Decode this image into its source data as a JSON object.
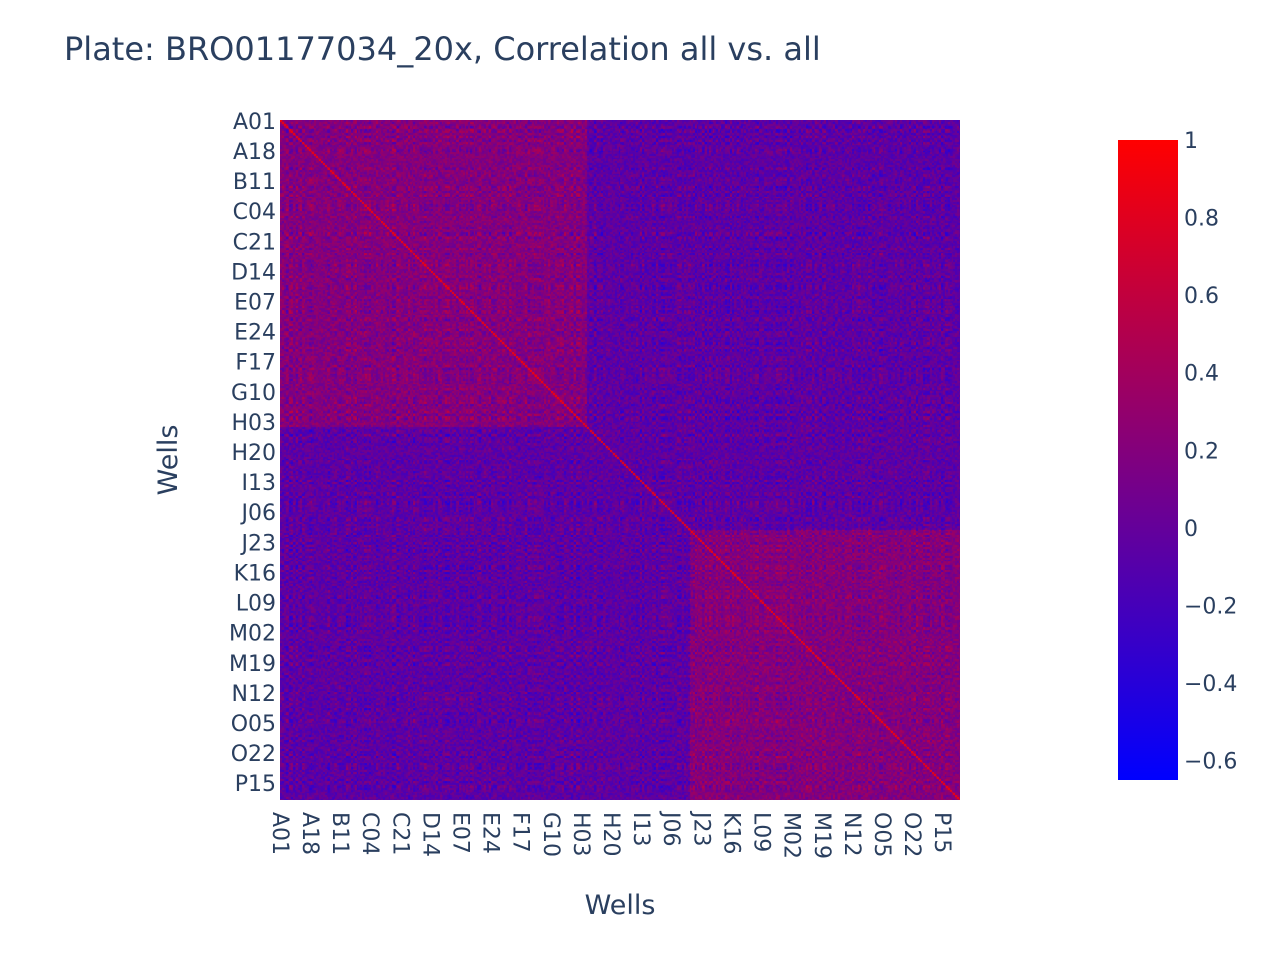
{
  "chart_data": {
    "type": "heatmap",
    "title": "Plate: BRO01177034_20x, Correlation all vs. all",
    "xlabel": "Wells",
    "ylabel": "Wells",
    "x_tick_labels": [
      "A01",
      "A18",
      "B11",
      "C04",
      "C21",
      "D14",
      "E07",
      "E24",
      "F17",
      "G10",
      "H03",
      "H20",
      "I13",
      "J06",
      "J23",
      "K16",
      "L09",
      "M02",
      "M19",
      "N12",
      "O05",
      "O22",
      "P15"
    ],
    "y_tick_labels": [
      "A01",
      "A18",
      "B11",
      "C04",
      "C21",
      "D14",
      "E07",
      "E24",
      "F17",
      "G10",
      "H03",
      "H20",
      "I13",
      "J06",
      "J23",
      "K16",
      "L09",
      "M02",
      "M19",
      "N12",
      "O05",
      "O22",
      "P15"
    ],
    "wells_per_axis": 384,
    "tick_step": 17,
    "value_range": [
      -0.65,
      1
    ],
    "colorscale": [
      [
        "#0000ff",
        0
      ],
      [
        "#ff0000",
        1
      ]
    ],
    "colorbar_ticks": [
      {
        "value": 1,
        "label": "1"
      },
      {
        "value": 0.8,
        "label": "0.8"
      },
      {
        "value": 0.6,
        "label": "0.6"
      },
      {
        "value": 0.4,
        "label": "0.4"
      },
      {
        "value": 0.2,
        "label": "0.2"
      },
      {
        "value": 0,
        "label": "0"
      },
      {
        "value": -0.2,
        "label": "−0.2"
      },
      {
        "value": -0.4,
        "label": "−0.4"
      },
      {
        "value": -0.6,
        "label": "−0.6"
      }
    ],
    "diagonal_value": 1
  }
}
